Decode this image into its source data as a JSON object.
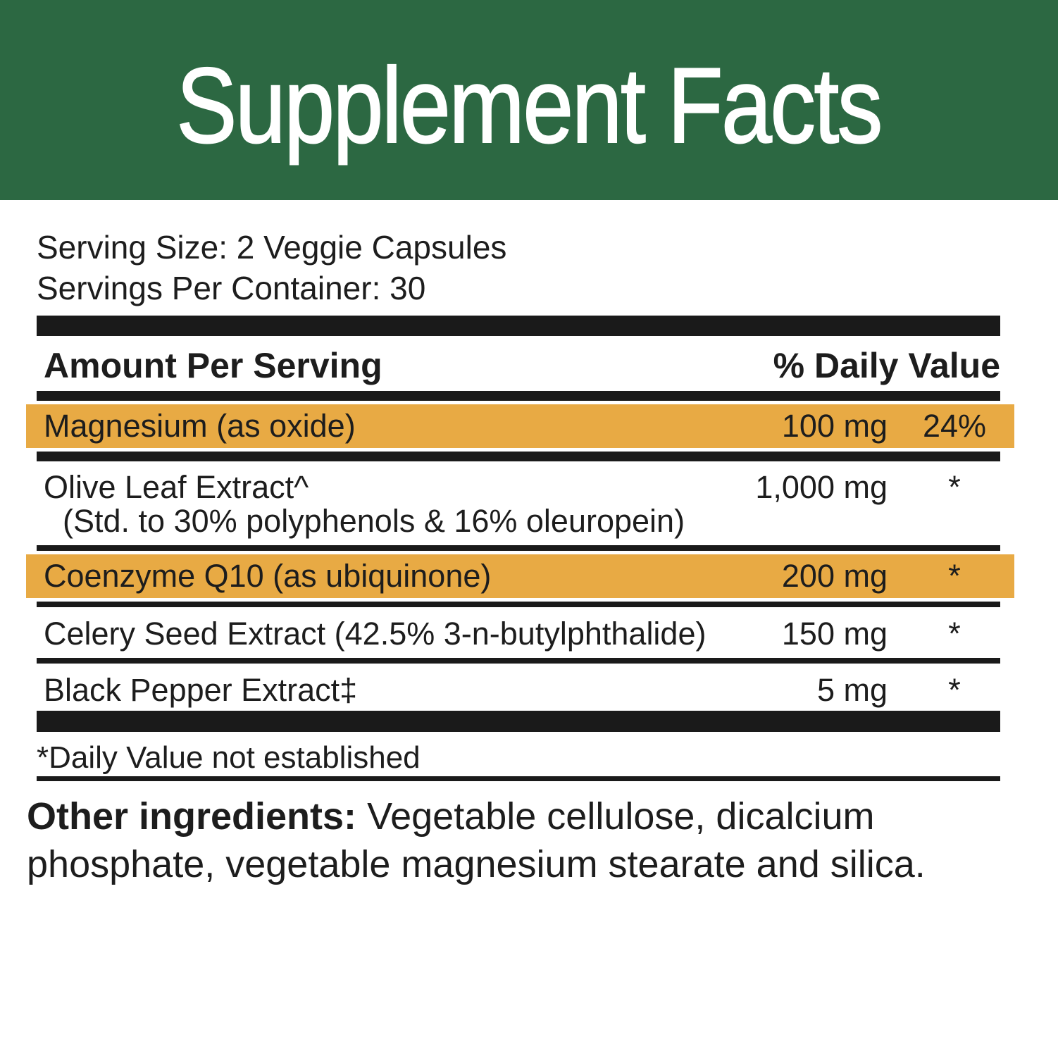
{
  "header": {
    "title": "Supplement Facts",
    "background_color": "#2c6842",
    "text_color": "#ffffff"
  },
  "serving": {
    "size": "Serving Size: 2 Veggie Capsules",
    "per_container": "Servings Per Container: 30"
  },
  "table": {
    "amount_header": "Amount Per Serving",
    "dv_header": "% Daily Value",
    "highlight_color": "#e8aa44",
    "rows": [
      {
        "name": "Magnesium (as oxide)",
        "detail": "",
        "amount": "100 mg",
        "dv": "24%",
        "highlighted": true
      },
      {
        "name": "Olive Leaf Extract^",
        "detail": "(Std. to 30% polyphenols & 16% oleuropein)",
        "amount": "1,000 mg",
        "dv": "*",
        "highlighted": false
      },
      {
        "name": "Coenzyme Q10 (as ubiquinone)",
        "detail": "",
        "amount": "200 mg",
        "dv": "*",
        "highlighted": true
      },
      {
        "name": "Celery Seed Extract (42.5% 3-n-butylphthalide)",
        "detail": "",
        "amount": "150 mg",
        "dv": "*",
        "highlighted": false
      },
      {
        "name": "Black Pepper Extract‡",
        "detail": "",
        "amount": "5 mg",
        "dv": "*",
        "highlighted": false
      }
    ]
  },
  "footnotes": {
    "daily_value_note": "*Daily Value not established"
  },
  "other_ingredients": {
    "label": "Other ingredients:",
    "text": "Vegetable cellulose, dicalcium phosphate, vegetable magnesium stearate and silica."
  }
}
